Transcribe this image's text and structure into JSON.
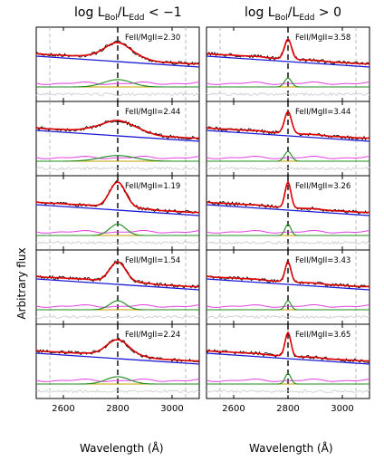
{
  "titles": {
    "left_prefix": "log L",
    "left_sub1": "Bol",
    "left_mid": "/L",
    "left_sub2": "Edd",
    "left_suffix": " < −1",
    "right_prefix": "log L",
    "right_sub1": "Bol",
    "right_mid": "/L",
    "right_sub2": "Edd",
    "right_suffix": " > 0"
  },
  "ylabel": "Arbitrary flux",
  "xlabel": "Wavelength (Å)",
  "colors": {
    "data": "#000000",
    "model": "#e00000",
    "continuum": "#1a1ad6",
    "feii": "#e040e0",
    "mgii": "#1e8c1e",
    "residual": "#c8c8c8",
    "dashed": "#aaaaaa"
  },
  "chart_data": {
    "type": "line",
    "xlim": [
      2500,
      3100
    ],
    "x_ticks": [
      2600,
      2800,
      3000
    ],
    "x_tick_labels": [
      "2600",
      "2800",
      "3000"
    ],
    "vertical_line": 2800,
    "gray_dashed_lines": [
      2550,
      3050
    ],
    "panels": [
      {
        "column": "left",
        "label": "FeII/MgII=2.30",
        "fwhm": 120,
        "amp": 0.45
      },
      {
        "column": "left",
        "label": "FeII/MgII=2.44",
        "fwhm": 150,
        "amp": 0.35
      },
      {
        "column": "left",
        "label": "FeII/MgII=1.19",
        "fwhm": 70,
        "amp": 0.7
      },
      {
        "column": "left",
        "label": "FeII/MgII=1.54",
        "fwhm": 70,
        "amp": 0.55
      },
      {
        "column": "left",
        "label": "FeII/MgII=2.24",
        "fwhm": 100,
        "amp": 0.45
      },
      {
        "column": "right",
        "label": "FeII/MgII=3.58",
        "fwhm": 30,
        "amp": 0.55
      },
      {
        "column": "right",
        "label": "FeII/MgII=3.44",
        "fwhm": 30,
        "amp": 0.6
      },
      {
        "column": "right",
        "label": "FeII/MgII=3.26",
        "fwhm": 25,
        "amp": 0.7
      },
      {
        "column": "right",
        "label": "FeII/MgII=3.43",
        "fwhm": 25,
        "amp": 0.55
      },
      {
        "column": "right",
        "label": "FeII/MgII=3.65",
        "fwhm": 25,
        "amp": 0.65
      }
    ]
  }
}
